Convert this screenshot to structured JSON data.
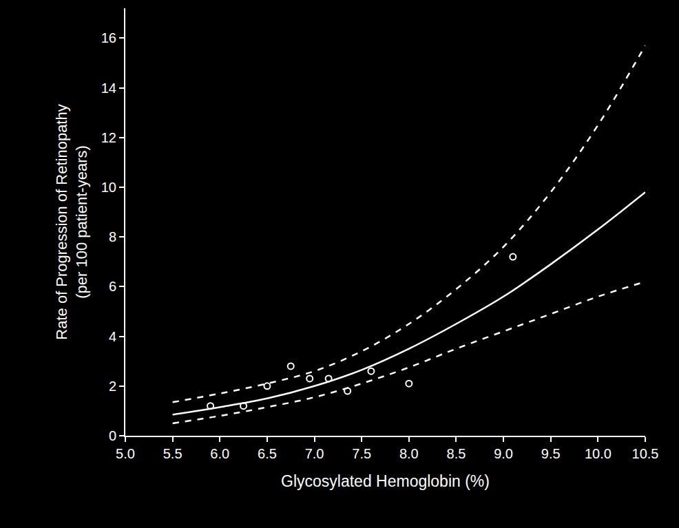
{
  "chart_data": {
    "type": "line",
    "x_label": "Glycosylated Hemoglobin (%)",
    "y_label": [
      "Rate of Progression of Retinopathy",
      "(per 100 patient-years)"
    ],
    "xlim": [
      5.0,
      10.5
    ],
    "xticks": [
      {
        "value": 5.0,
        "label": "5.0"
      },
      {
        "value": 5.5,
        "label": "5.5"
      },
      {
        "value": 6.0,
        "label": "6.0"
      },
      {
        "value": 6.5,
        "label": "6.5"
      },
      {
        "value": 7.0,
        "label": "7.0"
      },
      {
        "value": 7.5,
        "label": "7.5"
      },
      {
        "value": 8.0,
        "label": "8.0"
      },
      {
        "value": 8.5,
        "label": "8.5"
      },
      {
        "value": 9.0,
        "label": "9.0"
      },
      {
        "value": 9.5,
        "label": "9.5"
      },
      {
        "value": 10.0,
        "label": "10.0"
      },
      {
        "value": 10.5,
        "label": "10.5"
      }
    ],
    "ylim": [
      0,
      17.2
    ],
    "yticks": [
      0,
      2,
      4,
      6,
      8,
      10,
      12,
      14,
      16
    ],
    "grid": false,
    "color": "#ffffff",
    "series": [
      {
        "type": "line",
        "line_style": "solid",
        "color": "#ffffff",
        "x": [
          5.5,
          6.0,
          6.5,
          7.0,
          7.5,
          8.0,
          8.5,
          9.0,
          9.5,
          10.0,
          10.5
        ],
        "values": [
          0.85,
          1.15,
          1.5,
          2.0,
          2.65,
          3.5,
          4.5,
          5.6,
          6.9,
          8.3,
          9.8
        ]
      },
      {
        "type": "line",
        "line_style": "dash",
        "color": "#ffffff",
        "x": [
          5.5,
          6.0,
          6.5,
          7.0,
          7.5,
          8.0,
          8.5,
          9.0,
          9.5,
          10.0,
          10.5
        ],
        "values": [
          1.35,
          1.7,
          2.1,
          2.6,
          3.4,
          4.5,
          5.9,
          7.6,
          9.8,
          12.5,
          15.7
        ]
      },
      {
        "type": "line",
        "line_style": "dash",
        "color": "#ffffff",
        "x": [
          5.5,
          6.0,
          6.5,
          7.0,
          7.5,
          8.0,
          8.5,
          9.0,
          9.5,
          10.0,
          10.5
        ],
        "values": [
          0.5,
          0.8,
          1.15,
          1.55,
          2.1,
          2.75,
          3.5,
          4.2,
          4.9,
          5.6,
          6.2
        ]
      },
      {
        "type": "scatter",
        "marker": "circle-open",
        "color": "#ffffff",
        "x": [
          5.9,
          6.25,
          6.5,
          6.75,
          6.95,
          7.15,
          7.35,
          7.6,
          8.0,
          9.1
        ],
        "values": [
          1.2,
          1.2,
          2.0,
          2.8,
          2.3,
          2.3,
          1.8,
          2.6,
          2.1,
          7.2
        ]
      }
    ]
  }
}
